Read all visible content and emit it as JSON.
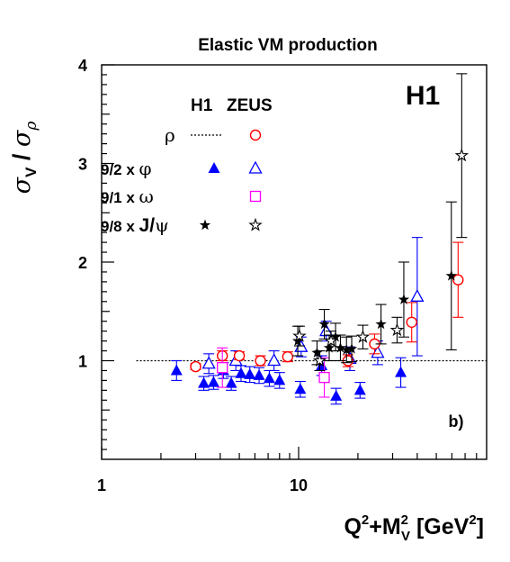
{
  "chart_data": {
    "type": "scatter",
    "title": "Elastic VM production",
    "experiment_label": "H1",
    "panel_label": "b)",
    "xlabel": "Q2+MV2 [GeV2]",
    "ylabel": "σV / σρ",
    "x_scale": "log",
    "xlim": [
      1,
      80
    ],
    "ylim": [
      0,
      4
    ],
    "x_ticks": [
      "1",
      "10"
    ],
    "y_ticks": [
      "1",
      "2",
      "3",
      "4"
    ],
    "reference_line": {
      "y": 1,
      "from_x": 1.5,
      "style": "dotted"
    },
    "legend": {
      "placement": "top-left",
      "headers": [
        "H1",
        "ZEUS"
      ],
      "rows": [
        {
          "label": "ρ",
          "h1": "dotted-line",
          "zeus": "open-circle",
          "color": "#ff0000"
        },
        {
          "label": "9/2 x φ",
          "h1": "filled-triangle",
          "zeus": "open-triangle",
          "color": "#0000ff"
        },
        {
          "label": "9/1 x ω",
          "h1": "",
          "zeus": "open-square",
          "color": "#ff00ff"
        },
        {
          "label": "9/8 x J/ψ",
          "h1": "filled-star",
          "zeus": "open-star",
          "color": "#000000"
        }
      ]
    },
    "series": [
      {
        "name": "H1 φ",
        "marker": "filled-triangle",
        "color": "#0000ff",
        "points": [
          [
            2.4,
            0.9,
            0.1
          ],
          [
            3.3,
            0.77,
            0.07
          ],
          [
            3.7,
            0.78,
            0.07
          ],
          [
            4.15,
            0.9,
            0.08
          ],
          [
            4.55,
            0.77,
            0.07
          ],
          [
            5.1,
            0.87,
            0.08
          ],
          [
            5.65,
            0.86,
            0.08
          ],
          [
            6.3,
            0.85,
            0.08
          ],
          [
            7.1,
            0.82,
            0.08
          ],
          [
            8.0,
            0.8,
            0.08
          ],
          [
            10.2,
            0.71,
            0.08
          ],
          [
            13.1,
            0.95,
            0.1
          ],
          [
            15.5,
            0.64,
            0.08
          ],
          [
            20.5,
            0.7,
            0.08
          ],
          [
            33.0,
            0.88,
            0.15
          ]
        ]
      },
      {
        "name": "ZEUS φ",
        "marker": "open-triangle",
        "color": "#0000ff",
        "points": [
          [
            3.5,
            0.97,
            0.1
          ],
          [
            4.8,
            1.0,
            0.1
          ],
          [
            7.5,
            1.0,
            0.1
          ],
          [
            10.3,
            1.14,
            0.1
          ],
          [
            13.8,
            1.3,
            0.1
          ],
          [
            18.2,
            1.02,
            0.12
          ],
          [
            25.2,
            1.08,
            0.12
          ],
          [
            40.0,
            1.65,
            0.6
          ]
        ]
      },
      {
        "name": "ZEUS ρ",
        "marker": "open-circle",
        "color": "#ff0000",
        "points": [
          [
            3.0,
            0.94,
            0.03
          ],
          [
            4.1,
            1.05,
            0.05
          ],
          [
            5.0,
            1.05,
            0.04
          ],
          [
            6.4,
            1.0,
            0.05
          ],
          [
            8.8,
            1.04,
            0.05
          ],
          [
            17.8,
            1.0,
            0.06
          ],
          [
            24.3,
            1.17,
            0.1
          ],
          [
            37.5,
            1.39,
            0.2
          ],
          [
            64.5,
            1.82,
            0.38
          ]
        ]
      },
      {
        "name": "ZEUS ω",
        "marker": "open-square",
        "color": "#ff00ff",
        "points": [
          [
            4.1,
            0.93,
            0.2
          ],
          [
            13.5,
            0.83,
            0.2
          ]
        ]
      },
      {
        "name": "H1 J/ψ",
        "marker": "filled-star",
        "color": "#000000",
        "points": [
          [
            9.9,
            1.2,
            0.15
          ],
          [
            12.4,
            1.08,
            0.12
          ],
          [
            13.5,
            1.37,
            0.15
          ],
          [
            14.3,
            1.13,
            0.13
          ],
          [
            15.4,
            1.24,
            0.14
          ],
          [
            16.3,
            1.13,
            0.13
          ],
          [
            17.5,
            1.11,
            0.13
          ],
          [
            18.6,
            1.12,
            0.13
          ],
          [
            26.2,
            1.37,
            0.2
          ],
          [
            34.2,
            1.62,
            0.38
          ],
          [
            59.6,
            1.86,
            0.75
          ]
        ]
      },
      {
        "name": "ZEUS J/ψ",
        "marker": "open-star",
        "color": "#000000",
        "points": [
          [
            10.1,
            1.25,
            0.1
          ],
          [
            12.8,
            1.0,
            0.1
          ],
          [
            14.6,
            1.2,
            0.1
          ],
          [
            21.2,
            1.24,
            0.12
          ],
          [
            31.6,
            1.31,
            0.13
          ],
          [
            67.3,
            3.08,
            0.83
          ]
        ]
      }
    ]
  }
}
